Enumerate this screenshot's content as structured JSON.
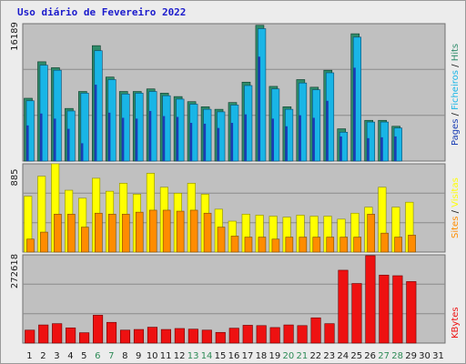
{
  "title": "Uso diário de Fevereiro 2022",
  "chart_data": [
    {
      "type": "bar",
      "name": "pages-files-hits",
      "categories": [
        "1",
        "2",
        "3",
        "4",
        "5",
        "6",
        "7",
        "8",
        "9",
        "10",
        "11",
        "12",
        "13",
        "14",
        "15",
        "16",
        "17",
        "18",
        "19",
        "20",
        "21",
        "22",
        "23",
        "24",
        "25",
        "26",
        "27",
        "28",
        "29",
        "30",
        "31"
      ],
      "max_label": "16189",
      "ylim": [
        0,
        16189
      ],
      "legend": [
        "Pages",
        "/",
        "Ficheiros",
        "/",
        "Hits"
      ],
      "series": [
        {
          "name": "Hits",
          "color": "#2e8b6a",
          "values": [
            7400,
            11700,
            11000,
            6200,
            8200,
            13600,
            9900,
            8200,
            8200,
            8500,
            8000,
            7600,
            7000,
            6400,
            6100,
            6900,
            9300,
            16000,
            8800,
            6400,
            9600,
            8700,
            10700,
            3800,
            15000,
            4800,
            4800,
            4100,
            0,
            0,
            0
          ]
        },
        {
          "name": "Ficheiros",
          "color": "#19b5e6",
          "values": [
            7100,
            11300,
            10700,
            5900,
            8000,
            13000,
            9600,
            7900,
            8000,
            8200,
            7700,
            7300,
            6700,
            6100,
            5800,
            6600,
            8900,
            15600,
            8500,
            6100,
            9200,
            8400,
            10400,
            3400,
            14600,
            4600,
            4600,
            3900,
            0,
            0,
            0
          ]
        },
        {
          "name": "Pages",
          "color": "#1a3eb4",
          "values": [
            4200,
            5600,
            5000,
            3800,
            2100,
            9000,
            5700,
            5100,
            5000,
            5900,
            5300,
            5200,
            4500,
            4400,
            3900,
            4500,
            5500,
            12300,
            5000,
            4100,
            5400,
            5100,
            7100,
            2900,
            11000,
            2700,
            2800,
            2900,
            0,
            0,
            0
          ]
        }
      ]
    },
    {
      "type": "bar",
      "name": "visits-sites",
      "categories": [
        "1",
        "2",
        "3",
        "4",
        "5",
        "6",
        "7",
        "8",
        "9",
        "10",
        "11",
        "12",
        "13",
        "14",
        "15",
        "16",
        "17",
        "18",
        "19",
        "20",
        "21",
        "22",
        "23",
        "24",
        "25",
        "26",
        "27",
        "28",
        "29",
        "30",
        "31"
      ],
      "max_label": "885",
      "ylim": [
        0,
        885
      ],
      "legend": [
        "Sites",
        "/",
        "Visitas"
      ],
      "series": [
        {
          "name": "Visitas",
          "color": "#ffff00",
          "values": [
            560,
            760,
            885,
            620,
            540,
            740,
            610,
            690,
            580,
            790,
            650,
            590,
            690,
            580,
            430,
            310,
            380,
            370,
            360,
            350,
            370,
            360,
            360,
            330,
            390,
            450,
            650,
            450,
            500,
            0,
            0
          ]
        },
        {
          "name": "Sites",
          "color": "#ff8c00",
          "values": [
            130,
            200,
            380,
            380,
            250,
            390,
            380,
            380,
            400,
            420,
            420,
            410,
            420,
            390,
            250,
            160,
            150,
            150,
            130,
            150,
            150,
            150,
            150,
            150,
            150,
            380,
            190,
            150,
            170,
            0,
            0
          ]
        }
      ]
    },
    {
      "type": "bar",
      "name": "kbytes",
      "categories": [
        "1",
        "2",
        "3",
        "4",
        "5",
        "6",
        "7",
        "8",
        "9",
        "10",
        "11",
        "12",
        "13",
        "14",
        "15",
        "16",
        "17",
        "18",
        "19",
        "20",
        "21",
        "22",
        "23",
        "24",
        "25",
        "26",
        "27",
        "28",
        "29",
        "30",
        "31"
      ],
      "max_label": "272618",
      "ylim": [
        0,
        272618
      ],
      "legend": [
        "KBytes"
      ],
      "series": [
        {
          "name": "KBytes",
          "color": "#ee1111",
          "values": [
            40000,
            56000,
            60000,
            47000,
            32000,
            86000,
            64000,
            40000,
            42000,
            49000,
            42000,
            45000,
            43000,
            40000,
            33000,
            46000,
            55000,
            54000,
            48000,
            56000,
            54000,
            78000,
            60000,
            225000,
            184000,
            270000,
            210000,
            208000,
            190000,
            0,
            0
          ]
        }
      ]
    }
  ],
  "x_label_colors": {
    "weekday": "#1a1a1a",
    "weekend": "#2e8b57"
  }
}
